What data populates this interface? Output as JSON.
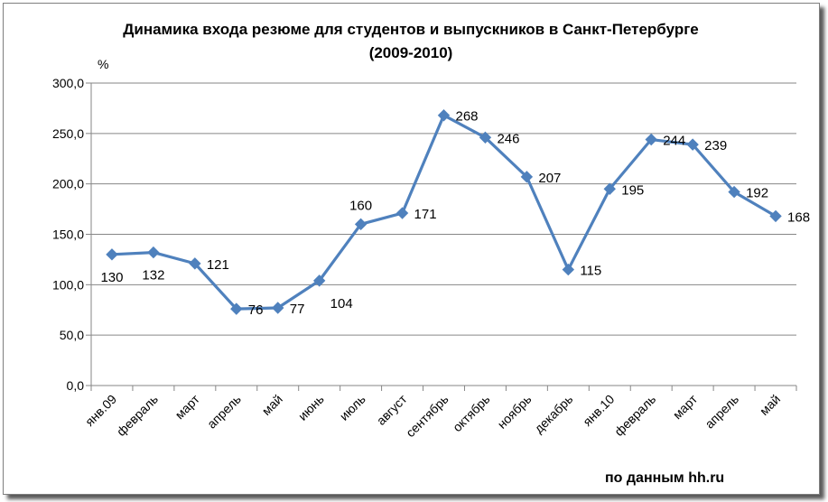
{
  "chart_data": {
    "type": "line",
    "title": "Динамика входа резюме для студентов и выпускников в Санкт-Петербурге",
    "subtitle": "(2009-2010)",
    "ylabel": "%",
    "xlabel": "",
    "ylim": [
      0,
      300
    ],
    "yticks": [
      "0,0",
      "50,0",
      "100,0",
      "150,0",
      "200,0",
      "250,0",
      "300,0"
    ],
    "grid": true,
    "categories": [
      "янв.09",
      "февраль",
      "март",
      "апрель",
      "май",
      "июнь",
      "июль",
      "август",
      "сентябрь",
      "октябрь",
      "ноябрь",
      "декабрь",
      "янв.10",
      "февраль",
      "март",
      "апрель",
      "май"
    ],
    "values": [
      130,
      132,
      121,
      76,
      77,
      104,
      160,
      171,
      268,
      246,
      207,
      115,
      195,
      244,
      239,
      192,
      168
    ],
    "series_color": "#4f81bd",
    "source": "по данным hh.ru"
  }
}
